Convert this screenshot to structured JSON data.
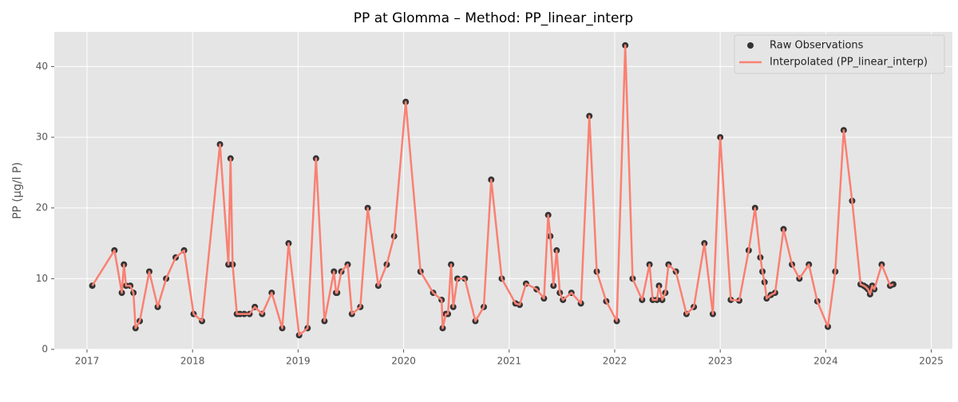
{
  "chart_data": {
    "type": "line",
    "title": "PP at Glomma – Method: PP_linear_interp",
    "ylabel": "PP (μg/l P)",
    "x": [
      2017.05,
      2017.26,
      2017.33,
      2017.35,
      2017.37,
      2017.41,
      2017.44,
      2017.46,
      2017.5,
      2017.59,
      2017.67,
      2017.75,
      2017.84,
      2017.92,
      2018.01,
      2018.09,
      2018.26,
      2018.34,
      2018.36,
      2018.38,
      2018.42,
      2018.45,
      2018.49,
      2018.54,
      2018.59,
      2018.66,
      2018.75,
      2018.85,
      2018.91,
      2019.01,
      2019.09,
      2019.17,
      2019.25,
      2019.34,
      2019.36,
      2019.37,
      2019.41,
      2019.47,
      2019.51,
      2019.59,
      2019.66,
      2019.76,
      2019.84,
      2019.91,
      2020.02,
      2020.16,
      2020.28,
      2020.36,
      2020.37,
      2020.4,
      2020.42,
      2020.45,
      2020.47,
      2020.51,
      2020.58,
      2020.68,
      2020.76,
      2020.83,
      2020.93,
      2021.06,
      2021.1,
      2021.16,
      2021.26,
      2021.33,
      2021.37,
      2021.39,
      2021.42,
      2021.45,
      2021.48,
      2021.51,
      2021.59,
      2021.68,
      2021.76,
      2021.83,
      2021.92,
      2022.02,
      2022.1,
      2022.17,
      2022.26,
      2022.33,
      2022.36,
      2022.4,
      2022.42,
      2022.45,
      2022.48,
      2022.51,
      2022.58,
      2022.68,
      2022.75,
      2022.85,
      2022.93,
      2023.0,
      2023.1,
      2023.18,
      2023.27,
      2023.33,
      2023.38,
      2023.4,
      2023.42,
      2023.44,
      2023.48,
      2023.52,
      2023.6,
      2023.68,
      2023.75,
      2023.84,
      2023.92,
      2024.02,
      2024.09,
      2024.17,
      2024.25,
      2024.33,
      2024.36,
      2024.38,
      2024.4,
      2024.42,
      2024.44,
      2024.46,
      2024.53,
      2024.61,
      2024.64
    ],
    "series": [
      {
        "name": "Raw Observations",
        "kind": "scatter",
        "color": "#333333",
        "values": [
          9,
          14,
          8,
          12,
          9,
          9,
          8,
          3,
          4,
          11,
          6,
          10,
          13,
          14,
          5,
          4,
          29,
          12,
          27,
          12,
          5,
          5,
          5,
          5,
          6,
          5,
          8,
          3,
          15,
          2,
          3,
          27,
          4,
          11,
          8,
          8,
          11,
          12,
          5,
          6,
          20,
          9,
          12,
          16,
          35,
          11,
          8,
          7,
          3,
          5,
          5,
          12,
          6,
          10,
          10,
          4,
          6,
          24,
          10,
          6.5,
          6.3,
          9.3,
          8.5,
          7.2,
          19,
          16,
          9,
          14,
          8,
          7,
          8,
          6.5,
          33,
          11,
          6.8,
          4,
          43,
          10,
          7,
          12,
          7,
          7,
          9,
          7,
          8,
          12,
          11,
          5,
          6,
          15,
          5,
          30,
          7,
          6.9,
          14,
          20,
          13,
          11,
          9.5,
          7.2,
          7.7,
          8,
          17,
          12,
          10,
          12,
          6.8,
          3.2,
          11,
          31,
          21,
          9.2,
          9,
          8.8,
          8.5,
          7.8,
          9,
          8.5,
          12,
          9,
          9.2
        ]
      },
      {
        "name": "Interpolated (PP_linear_interp)",
        "kind": "line",
        "color": "#fa8072",
        "values": [
          9,
          14,
          8,
          12,
          9,
          9,
          8,
          3,
          4,
          11,
          6,
          10,
          13,
          14,
          5,
          4,
          29,
          12,
          27,
          12,
          5,
          5,
          5,
          5,
          6,
          5,
          8,
          3,
          15,
          2,
          3,
          27,
          4,
          11,
          8,
          8,
          11,
          12,
          5,
          6,
          20,
          9,
          12,
          16,
          35,
          11,
          8,
          7,
          3,
          5,
          5,
          12,
          6,
          10,
          10,
          4,
          6,
          24,
          10,
          6.5,
          6.3,
          9.3,
          8.5,
          7.2,
          19,
          16,
          9,
          14,
          8,
          7,
          8,
          6.5,
          33,
          11,
          6.8,
          4,
          43,
          10,
          7,
          12,
          7,
          7,
          9,
          7,
          8,
          12,
          11,
          5,
          6,
          15,
          5,
          30,
          7,
          6.9,
          14,
          20,
          13,
          11,
          9.5,
          7.2,
          7.7,
          8,
          17,
          12,
          10,
          12,
          6.8,
          3.2,
          11,
          31,
          21,
          9.2,
          9,
          8.8,
          8.5,
          7.8,
          9,
          8.5,
          12,
          9,
          9.2
        ]
      }
    ],
    "xlim": [
      2016.69,
      2025.2
    ],
    "xticks": [
      2017,
      2018,
      2019,
      2020,
      2021,
      2022,
      2023,
      2024,
      2025
    ],
    "ylim": [
      0,
      44.9
    ],
    "yticks": [
      0,
      10,
      20,
      30,
      40
    ],
    "grid": true,
    "legend": "upper right"
  }
}
